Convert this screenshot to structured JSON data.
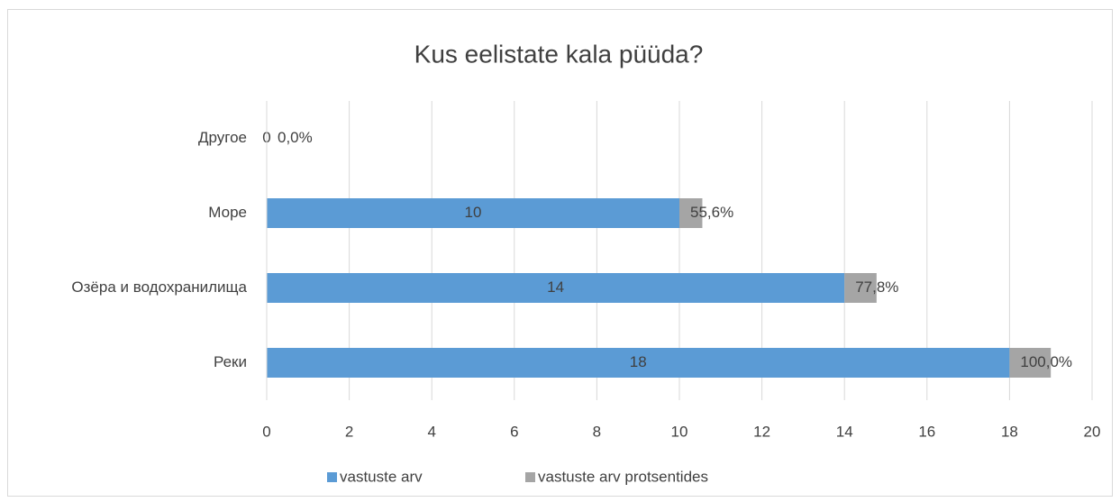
{
  "chart_data": {
    "type": "stacked_bar_horizontal",
    "title": "Kus eelistate kala püüda?",
    "categories": [
      "Реки",
      "Озёра и водохранилища",
      "Море",
      "Другое"
    ],
    "series": [
      {
        "name": "vastuste arv",
        "color": "#5b9bd5",
        "values": [
          18,
          14,
          10,
          0
        ]
      },
      {
        "name": "vastuste arv protsentides",
        "color": "#a5a5a5",
        "values": [
          1,
          0.778,
          0.556,
          0
        ],
        "value_labels": [
          "100,0%",
          "77,8%",
          "55,6%",
          "0,0%"
        ]
      }
    ],
    "xlim": [
      0,
      20
    ],
    "xticks": [
      0,
      2,
      4,
      6,
      8,
      10,
      12,
      14,
      16,
      18,
      20
    ],
    "grid": true,
    "legend": "bottom"
  }
}
